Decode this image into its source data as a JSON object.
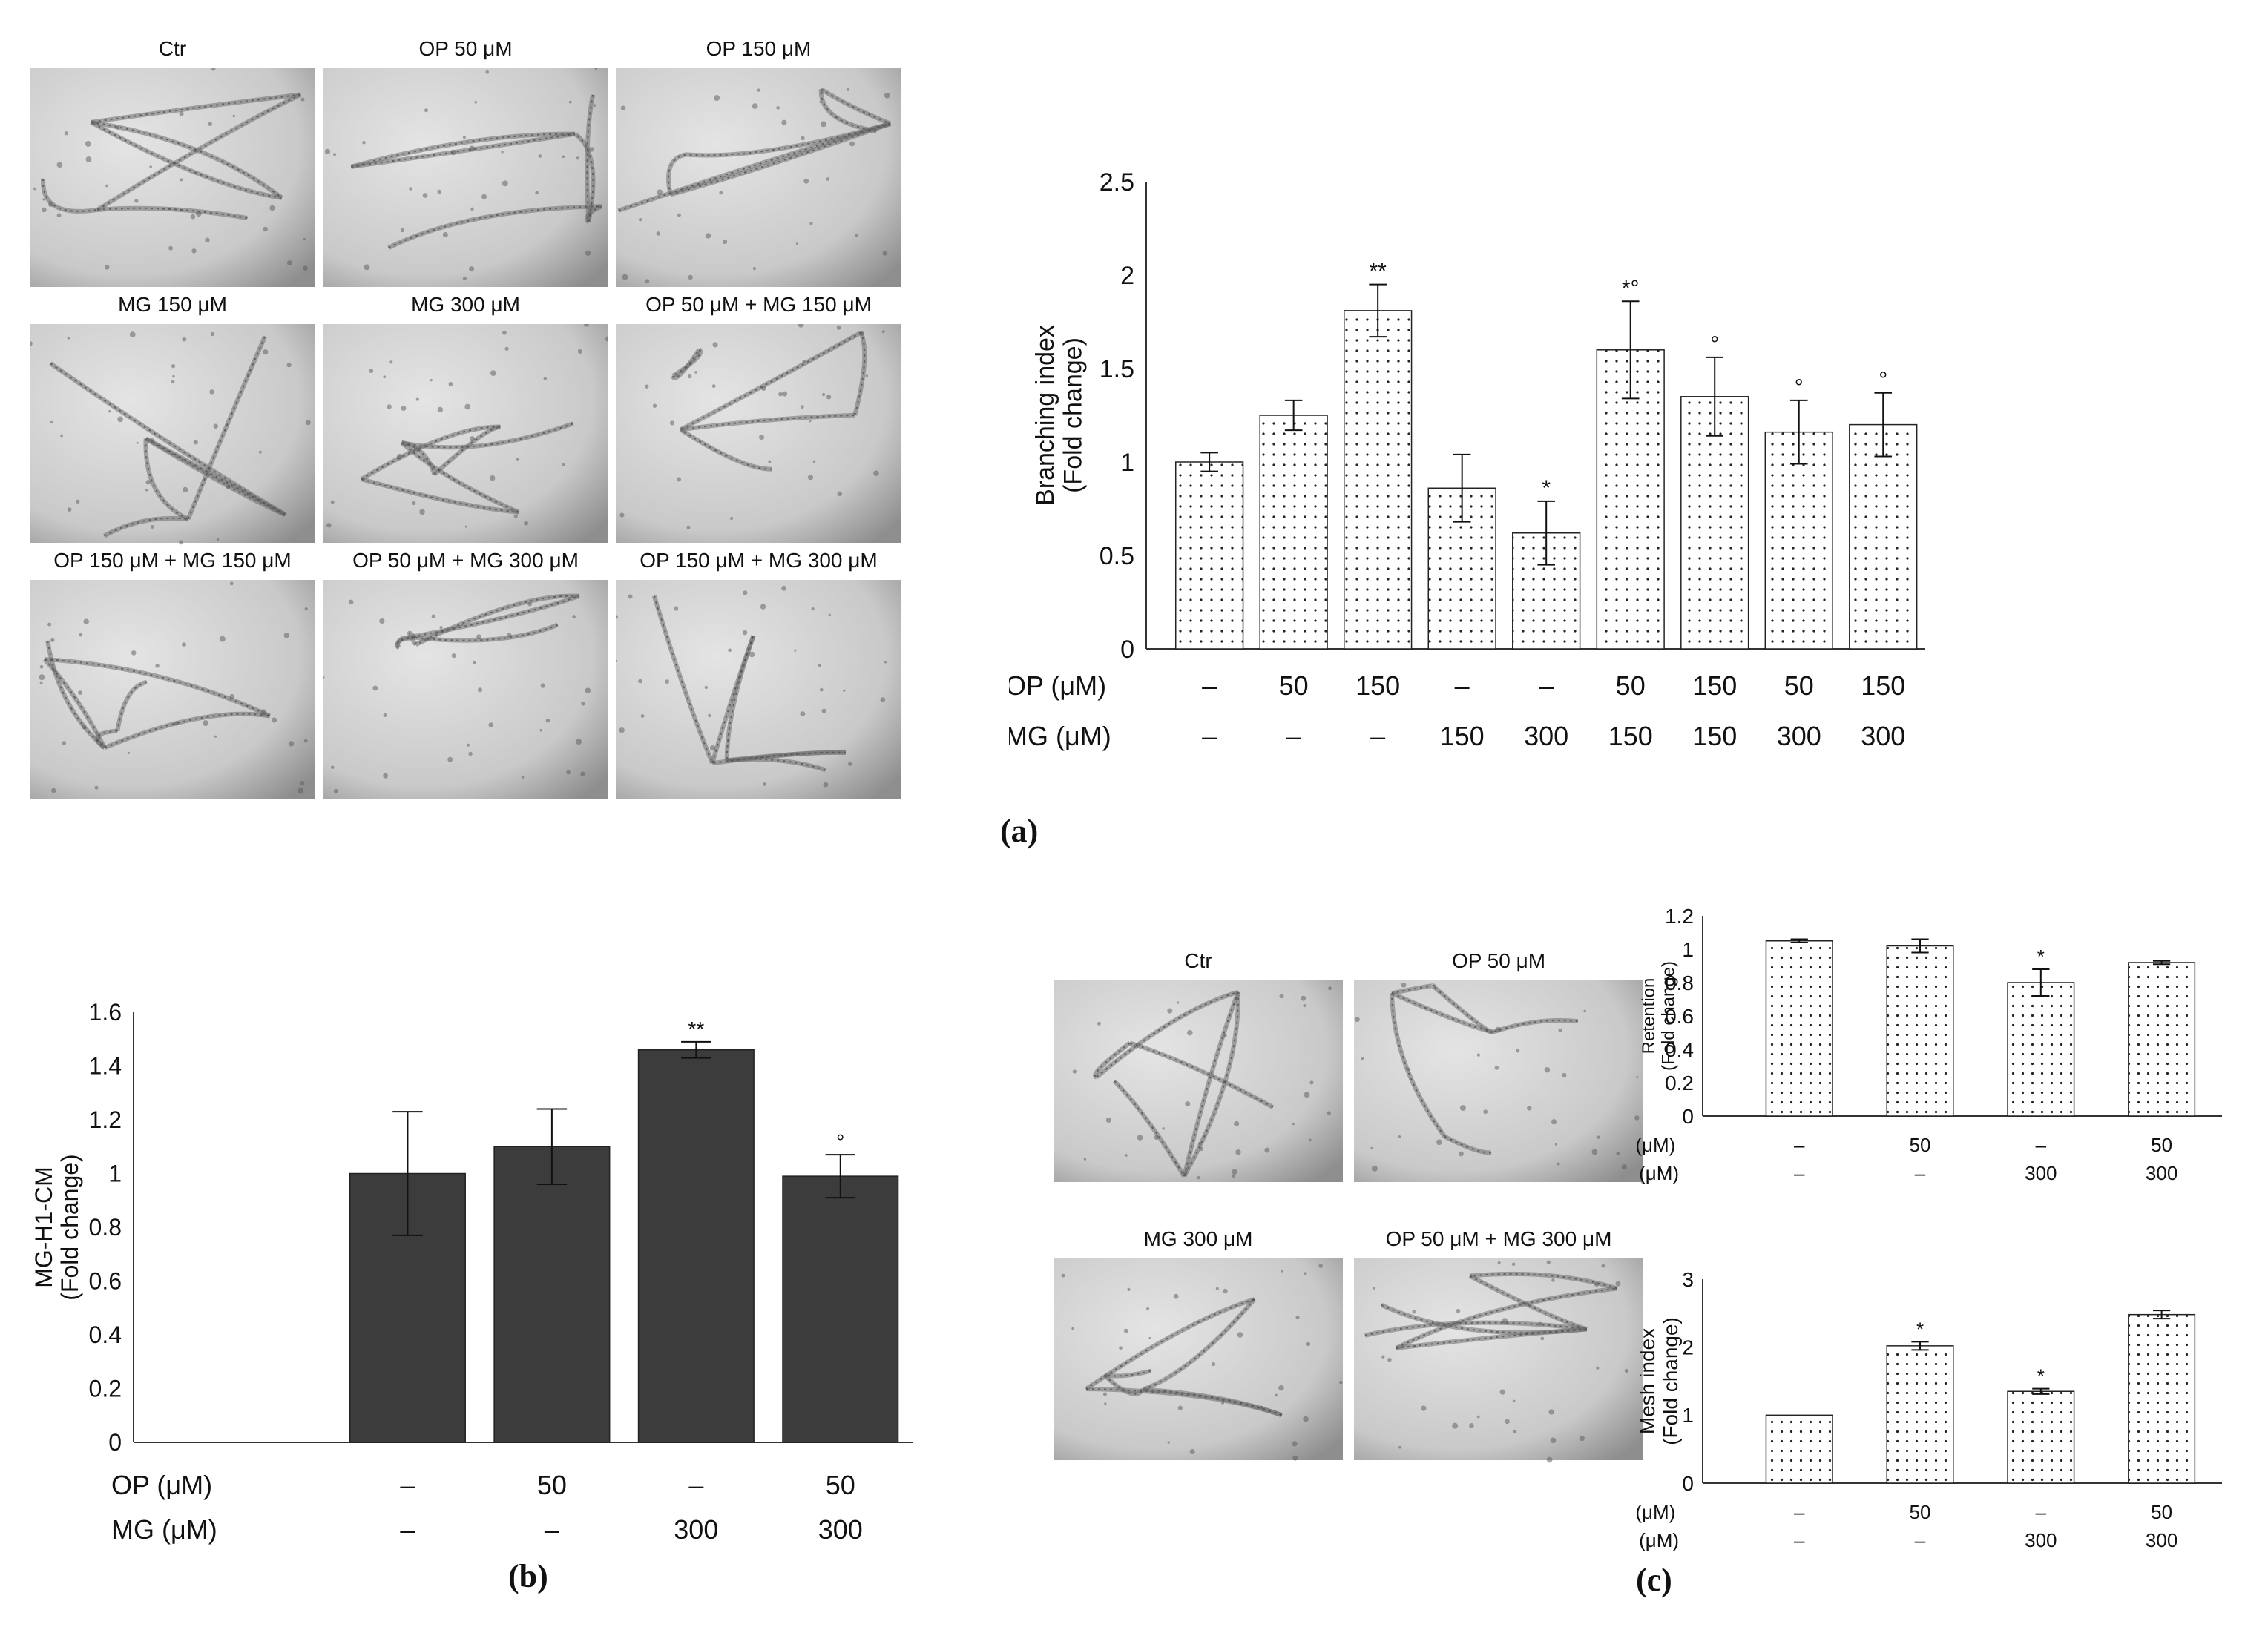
{
  "panel_a": {
    "letter": "(a)",
    "micrographs": [
      {
        "label": "Ctr"
      },
      {
        "label": "OP 50 μM"
      },
      {
        "label": "OP 150 μM"
      },
      {
        "label": "MG 150 μM"
      },
      {
        "label": "MG 300 μM"
      },
      {
        "label": "OP 50 μM + MG 150 μM"
      },
      {
        "label": "OP 150 μM + MG 150 μM"
      },
      {
        "label": "OP 50 μM + MG 300 μM"
      },
      {
        "label": "OP 150 μM + MG 300 μM"
      }
    ]
  },
  "panel_b": {
    "letter": "(b)"
  },
  "panel_c": {
    "letter": "(c)",
    "micrographs": [
      {
        "label": "Ctr"
      },
      {
        "label": "OP 50 μM"
      },
      {
        "label": "MG 300 μM"
      },
      {
        "label": "OP 50 μM + MG 300 μM"
      }
    ]
  },
  "colors": {
    "bar_dotted_fill": "#ffffff",
    "bar_dot": "#222222",
    "bar_solid": "#3c3c3c",
    "axis": "#333333",
    "micro_bg": "#cfcfcf"
  },
  "chart_data": [
    {
      "id": "branching",
      "type": "bar",
      "ylabel": "Branching index\n(Fold change)",
      "ylim": [
        0,
        2.5
      ],
      "yticks": [
        "0",
        "0.5",
        "1",
        "1.5",
        "2",
        "2.5"
      ],
      "row_labels": [
        "OP (μM)",
        "MG (μM)"
      ],
      "op": [
        "–",
        "50",
        "150",
        "–",
        "–",
        "50",
        "150",
        "50",
        "150"
      ],
      "mg": [
        "–",
        "–",
        "–",
        "150",
        "300",
        "150",
        "150",
        "300",
        "300"
      ],
      "values": [
        1.0,
        1.25,
        1.81,
        0.86,
        0.62,
        1.6,
        1.35,
        1.16,
        1.2
      ],
      "errors": [
        0.05,
        0.08,
        0.14,
        0.18,
        0.17,
        0.26,
        0.21,
        0.17,
        0.17
      ],
      "marks": [
        "",
        "",
        "**",
        "",
        "*",
        "*°",
        "°",
        "°",
        "°"
      ],
      "style": "dotted"
    },
    {
      "id": "mgh1",
      "type": "bar",
      "ylabel": "MG-H1-CM\n(Fold change)",
      "ylim": [
        0,
        1.6
      ],
      "yticks": [
        "0",
        "0.2",
        "0.4",
        "0.6",
        "0.8",
        "1",
        "1.2",
        "1.4",
        "1.6"
      ],
      "row_labels": [
        "OP (μM)",
        "MG (μM)"
      ],
      "op": [
        "–",
        "50",
        "–",
        "50"
      ],
      "mg": [
        "–",
        "–",
        "300",
        "300"
      ],
      "values": [
        1.0,
        1.1,
        1.46,
        0.99
      ],
      "errors": [
        0.23,
        0.14,
        0.03,
        0.08
      ],
      "marks": [
        "",
        "",
        "**",
        "°"
      ],
      "style": "solid"
    },
    {
      "id": "retention",
      "type": "bar",
      "ylabel": "Retention\n(Fold change)",
      "ylim": [
        0,
        1.2
      ],
      "yticks": [
        "0",
        "0.2",
        "0.4",
        "0.6",
        "0.8",
        "1",
        "1.2"
      ],
      "row_labels": [
        "OP (μM)",
        "MG (μM)"
      ],
      "op": [
        "–",
        "50",
        "–",
        "50"
      ],
      "mg": [
        "–",
        "–",
        "300",
        "300"
      ],
      "values": [
        1.05,
        1.02,
        0.8,
        0.92
      ],
      "errors": [
        0.01,
        0.04,
        0.08,
        0.01
      ],
      "marks": [
        "",
        "",
        "*",
        ""
      ],
      "style": "dotted"
    },
    {
      "id": "mesh",
      "type": "bar",
      "ylabel": "Mesh index\n(Fold change)",
      "ylim": [
        0,
        3
      ],
      "yticks": [
        "0",
        "1",
        "2",
        "3"
      ],
      "row_labels": [
        "OP (μM)",
        "MG (μM)"
      ],
      "op": [
        "–",
        "50",
        "–",
        "50"
      ],
      "mg": [
        "–",
        "–",
        "300",
        "300"
      ],
      "values": [
        1.0,
        2.02,
        1.35,
        2.48
      ],
      "errors": [
        0.0,
        0.06,
        0.04,
        0.06
      ],
      "marks": [
        "",
        "*",
        "*",
        ""
      ],
      "style": "dotted"
    }
  ]
}
